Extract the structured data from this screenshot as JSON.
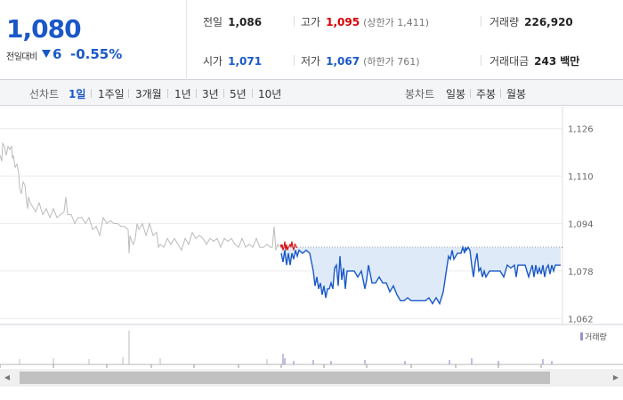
{
  "quote": {
    "price": "1,080",
    "change_label": "전일대비",
    "change_value": "6",
    "change_pct": "-0.55%",
    "direction": "down"
  },
  "stats": {
    "prev_close": {
      "label": "전일",
      "value": "1,086"
    },
    "open": {
      "label": "시가",
      "value": "1,071"
    },
    "high": {
      "label": "고가",
      "value": "1,095",
      "sub": "(상한가 1,411)"
    },
    "low": {
      "label": "저가",
      "value": "1,067",
      "sub": "(하한가 761)"
    },
    "volume": {
      "label": "거래량",
      "value": "226,920"
    },
    "amount": {
      "label": "거래대금",
      "value": "243",
      "unit": "백만"
    }
  },
  "tabs": {
    "line_label": "선차트",
    "line_periods": [
      "1일",
      "1주일",
      "3개월",
      "1년",
      "3년",
      "5년",
      "10년"
    ],
    "active_period": "1일",
    "candle_label": "봉차트",
    "candle_periods": [
      "일봉",
      "주봉",
      "월봉"
    ]
  },
  "chart_data": {
    "type": "line",
    "y_ticks": [
      "1,126",
      "1,110",
      "1,094",
      "1,078",
      "1,062"
    ],
    "y_tick_values": [
      1126,
      1110,
      1094,
      1078,
      1062
    ],
    "ylim": [
      1060,
      1131
    ],
    "reference_line": 1086,
    "series": [
      {
        "color": "#bbbbbb",
        "x": [
          0,
          2,
          3,
          5,
          7,
          9,
          11,
          13,
          14,
          15,
          17,
          19,
          21,
          22,
          24,
          26,
          28,
          30,
          31,
          32,
          34,
          36,
          40,
          44,
          48,
          52,
          56,
          60,
          64,
          68,
          72,
          74,
          76,
          80,
          84,
          88,
          92,
          96,
          100,
          104,
          108,
          112,
          116,
          120,
          124,
          128,
          132,
          136,
          140,
          144,
          145,
          146,
          148,
          150,
          152,
          154,
          156,
          160,
          164,
          168,
          172,
          176,
          178,
          180,
          184,
          188,
          192,
          196,
          200,
          204,
          208,
          212,
          216,
          220,
          224,
          228,
          232,
          236,
          240,
          244,
          248,
          252,
          256,
          260,
          264,
          268,
          272,
          276,
          280,
          284,
          288,
          292,
          296,
          300,
          304,
          306,
          308,
          310,
          312,
          314
        ],
        "y": [
          1117,
          1115,
          1121,
          1120,
          1117,
          1120,
          1119,
          1120,
          1116,
          1117,
          1113,
          1114,
          1111,
          1106,
          1104,
          1108,
          1107,
          1101,
          1099,
          1103,
          1101,
          1100,
          1098,
          1101,
          1097,
          1099,
          1096,
          1099,
          1096,
          1097,
          1098,
          1103,
          1097,
          1097,
          1094,
          1096,
          1096,
          1094,
          1096,
          1092,
          1093,
          1090,
          1096,
          1094,
          1095,
          1094,
          1094,
          1093,
          1093,
          1092,
          1084,
          1090,
          1088,
          1087,
          1089,
          1094,
          1092,
          1094,
          1090,
          1094,
          1090,
          1091,
          1086,
          1087,
          1086,
          1089,
          1087,
          1089,
          1087,
          1085,
          1089,
          1087,
          1091,
          1089,
          1090,
          1089,
          1087,
          1089,
          1088,
          1089,
          1086,
          1089,
          1088,
          1089,
          1087,
          1086,
          1089,
          1086,
          1087,
          1086,
          1089,
          1086,
          1086,
          1087,
          1086,
          1086,
          1093,
          1085,
          1087,
          1086
        ]
      },
      {
        "color": "#d60000",
        "x": [
          315,
          316,
          317,
          318,
          319,
          320,
          321,
          322,
          323,
          324,
          326,
          327,
          328,
          329,
          330,
          331,
          332,
          333,
          334
        ],
        "y": [
          1087,
          1086,
          1087,
          1085,
          1086,
          1088,
          1085,
          1087,
          1085,
          1086,
          1087,
          1086,
          1088,
          1086,
          1085,
          1087,
          1087,
          1086,
          1086
        ]
      },
      {
        "color": "#1a58c8",
        "x": [
          316,
          318,
          320,
          322,
          324,
          326,
          328,
          330,
          332,
          334,
          336,
          340,
          344,
          348,
          352,
          354,
          356,
          358,
          360,
          362,
          364,
          366,
          368,
          370,
          372,
          374,
          376,
          378,
          380,
          382,
          384,
          386,
          388,
          390,
          394,
          398,
          402,
          406,
          408,
          410,
          412,
          414,
          418,
          422,
          426,
          430,
          434,
          438,
          442,
          446,
          450,
          454,
          458,
          462,
          466,
          470,
          474,
          478,
          482,
          486,
          490,
          494,
          496,
          498,
          500,
          504,
          506,
          508,
          510,
          514,
          518,
          520,
          522,
          523,
          524,
          526,
          528,
          530,
          532,
          534,
          536,
          538,
          540,
          542,
          544,
          546,
          550,
          554,
          558,
          562,
          566,
          570,
          574,
          578,
          580,
          582,
          586,
          590,
          594,
          598,
          600,
          602,
          604,
          606,
          608,
          610,
          612,
          614,
          616,
          618,
          620,
          622,
          624,
          628,
          630
        ],
        "y": [
          1084,
          1081,
          1085,
          1080,
          1084,
          1080,
          1084,
          1082,
          1085,
          1083,
          1085,
          1084,
          1085,
          1084,
          1078,
          1073,
          1076,
          1072,
          1074,
          1070,
          1073,
          1069,
          1072,
          1072,
          1074,
          1072,
          1079,
          1080,
          1073,
          1083,
          1075,
          1079,
          1072,
          1078,
          1078,
          1078,
          1076,
          1078,
          1075,
          1072,
          1075,
          1080,
          1074,
          1074,
          1076,
          1074,
          1074,
          1071,
          1073,
          1070,
          1068,
          1068,
          1069,
          1068,
          1068,
          1068,
          1068,
          1068,
          1069,
          1067,
          1069,
          1067,
          1069,
          1071,
          1075,
          1083,
          1082,
          1085,
          1082,
          1084,
          1084,
          1086,
          1084,
          1086,
          1085,
          1086,
          1085,
          1080,
          1076,
          1081,
          1084,
          1078,
          1079,
          1076,
          1078,
          1076,
          1078,
          1078,
          1078,
          1078,
          1076,
          1080,
          1079,
          1080,
          1076,
          1080,
          1080,
          1080,
          1076,
          1080,
          1076,
          1080,
          1077,
          1079,
          1077,
          1080,
          1076,
          1079,
          1080,
          1077,
          1080,
          1078,
          1080,
          1080,
          1080
        ]
      }
    ],
    "volume_legend": "거래량"
  }
}
